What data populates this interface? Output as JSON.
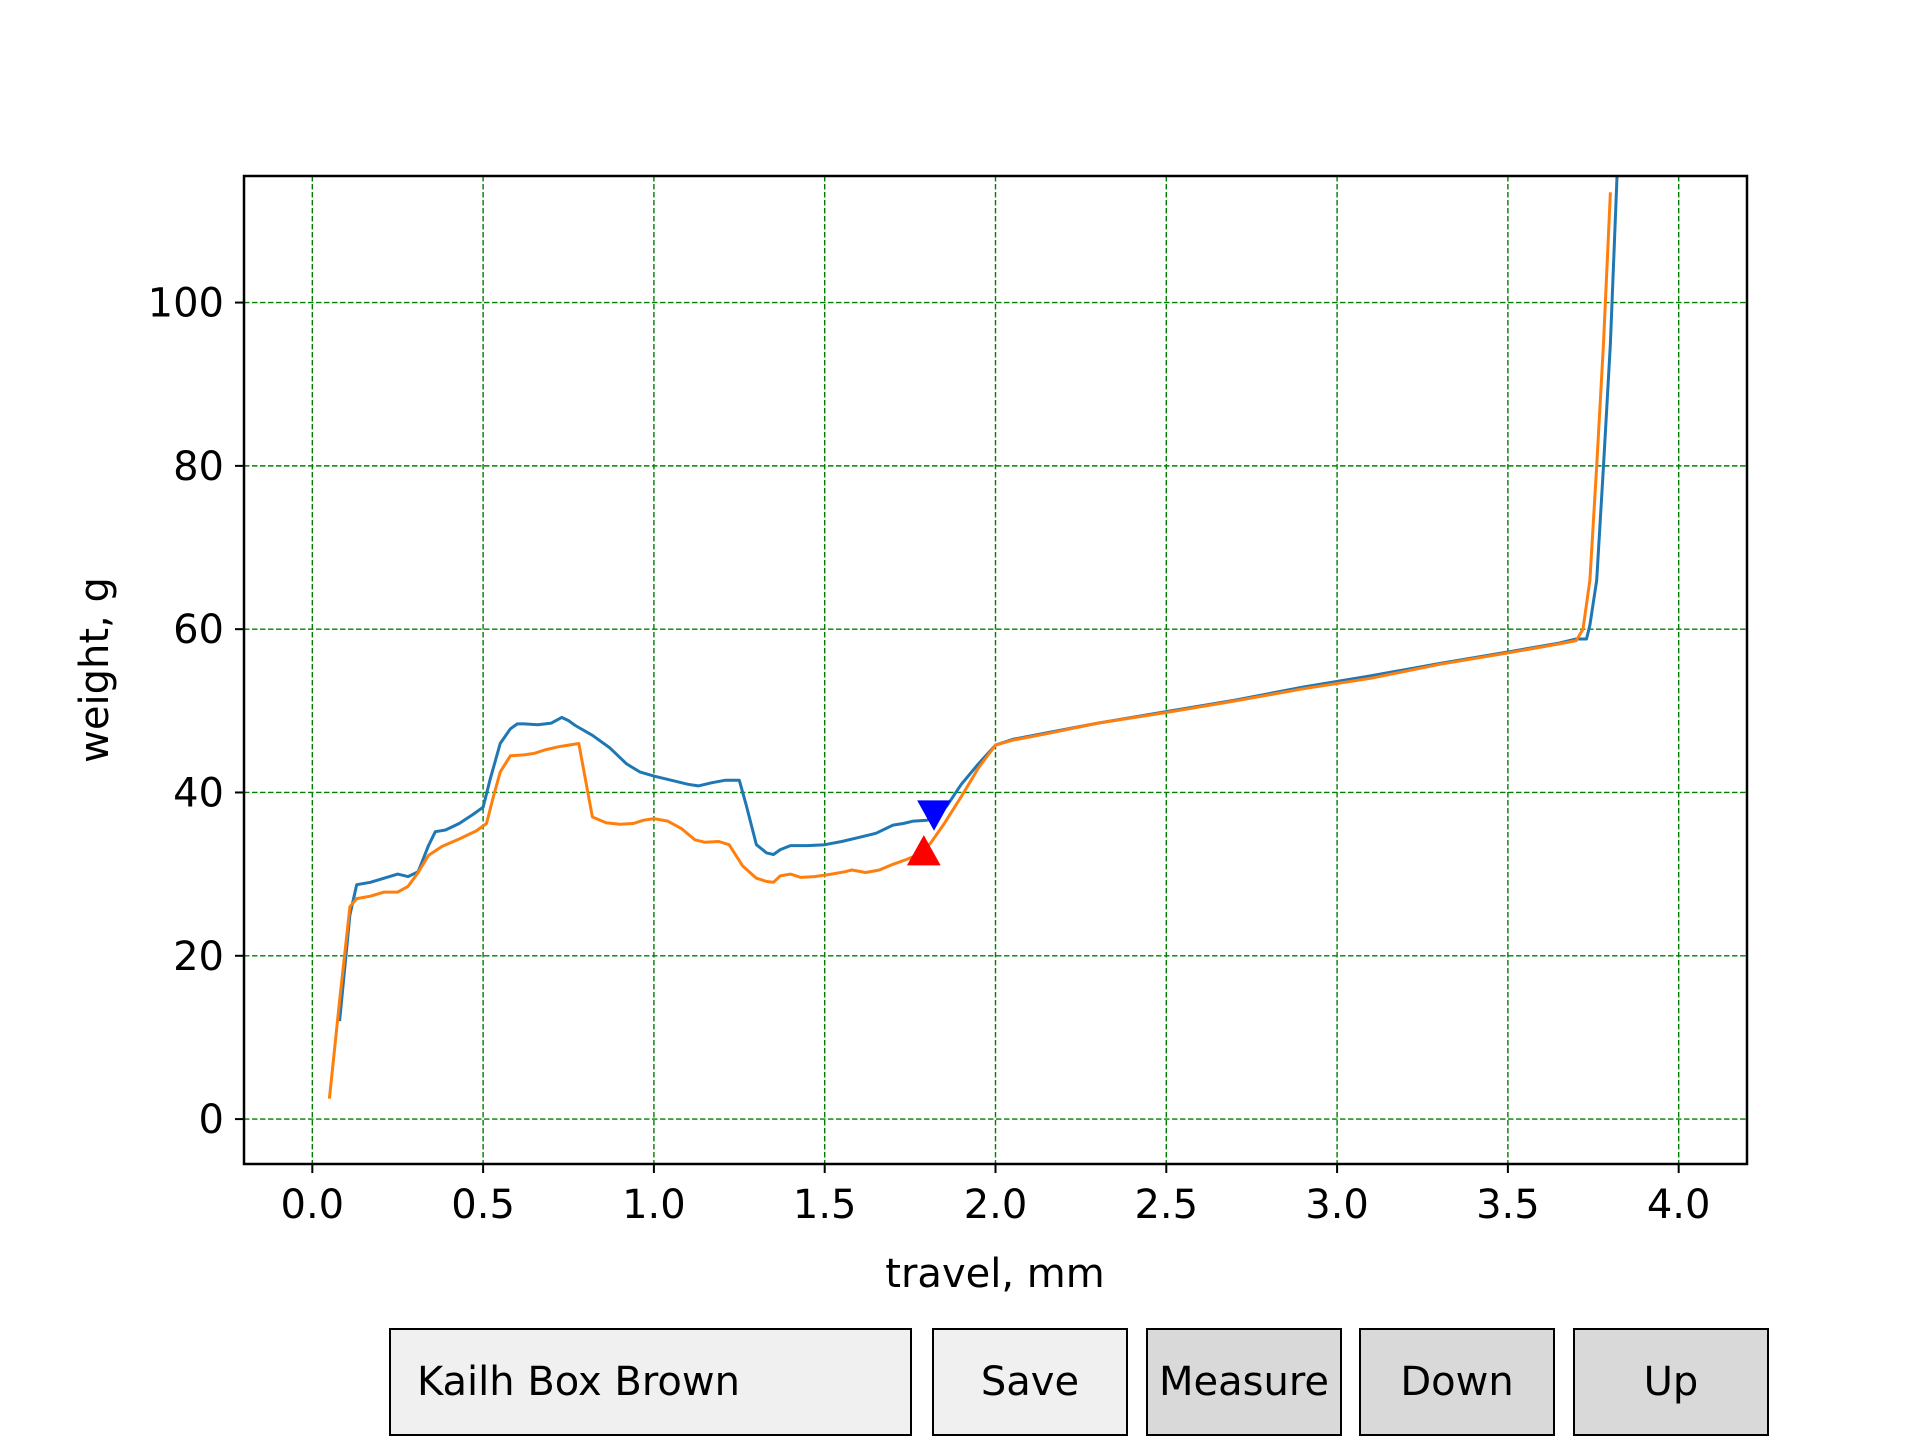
{
  "chart_data": {
    "type": "line",
    "xlabel": "travel, mm",
    "ylabel": "weight, g",
    "xlim": [
      -0.2,
      4.2
    ],
    "ylim": [
      -5.5,
      115.5
    ],
    "xticks": [
      "0.0",
      "0.5",
      "1.0",
      "1.5",
      "2.0",
      "2.5",
      "3.0",
      "3.5",
      "4.0"
    ],
    "yticks": [
      "0",
      "20",
      "40",
      "60",
      "80",
      "100"
    ],
    "grid": true,
    "grid_color": "#008000",
    "series": [
      {
        "color": "#1f77b4",
        "x": [
          0.08,
          0.11,
          0.13,
          0.17,
          0.21,
          0.25,
          0.28,
          0.31,
          0.34,
          0.36,
          0.39,
          0.43,
          0.47,
          0.5,
          0.52,
          0.55,
          0.58,
          0.6,
          0.62,
          0.66,
          0.7,
          0.73,
          0.75,
          0.77,
          0.82,
          0.87,
          0.92,
          0.96,
          1.0,
          1.05,
          1.1,
          1.13,
          1.17,
          1.21,
          1.25,
          1.27,
          1.3,
          1.33,
          1.35,
          1.37,
          1.4,
          1.45,
          1.5,
          1.55,
          1.6,
          1.65,
          1.7,
          1.73,
          1.76,
          1.8,
          1.83,
          1.86,
          1.9,
          1.95,
          2.0,
          2.05,
          2.15,
          2.3,
          2.5,
          2.7,
          2.9,
          3.1,
          3.3,
          3.5,
          3.65,
          3.7,
          3.73,
          3.74,
          3.76,
          3.78,
          3.8,
          3.82
        ],
        "y": [
          12,
          25,
          28.7,
          29,
          29.5,
          30,
          29.7,
          30.3,
          33.5,
          35.2,
          35.4,
          36.2,
          37.3,
          38.2,
          41.5,
          46,
          47.8,
          48.4,
          48.4,
          48.3,
          48.5,
          49.2,
          48.8,
          48.2,
          47,
          45.5,
          43.5,
          42.5,
          42,
          41.5,
          41,
          40.8,
          41.2,
          41.5,
          41.5,
          38.5,
          33.6,
          32.6,
          32.4,
          33,
          33.5,
          33.5,
          33.6,
          34,
          34.5,
          35,
          36,
          36.2,
          36.5,
          36.6,
          37,
          38.5,
          41,
          43.5,
          45.8,
          46.5,
          47.3,
          48.5,
          49.9,
          51.3,
          52.9,
          54.3,
          55.8,
          57.2,
          58.3,
          58.8,
          58.8,
          60.5,
          66,
          80,
          95,
          116
        ]
      },
      {
        "color": "#ff7f0e",
        "x": [
          0.05,
          0.08,
          0.11,
          0.13,
          0.17,
          0.21,
          0.25,
          0.28,
          0.31,
          0.34,
          0.38,
          0.43,
          0.48,
          0.51,
          0.53,
          0.55,
          0.58,
          0.62,
          0.65,
          0.68,
          0.72,
          0.75,
          0.78,
          0.82,
          0.86,
          0.9,
          0.94,
          0.97,
          1.0,
          1.04,
          1.08,
          1.12,
          1.15,
          1.19,
          1.22,
          1.26,
          1.3,
          1.33,
          1.35,
          1.37,
          1.4,
          1.43,
          1.47,
          1.52,
          1.56,
          1.58,
          1.62,
          1.66,
          1.7,
          1.74,
          1.78,
          1.81,
          1.85,
          1.9,
          1.95,
          2.0,
          2.05,
          2.15,
          2.3,
          2.5,
          2.7,
          2.9,
          3.1,
          3.3,
          3.5,
          3.65,
          3.7,
          3.72,
          3.74,
          3.76,
          3.78,
          3.8
        ],
        "y": [
          2.5,
          14.5,
          26,
          27,
          27.3,
          27.8,
          27.8,
          28.5,
          30.2,
          32.3,
          33.4,
          34.3,
          35.3,
          36.2,
          39.5,
          42.5,
          44.5,
          44.6,
          44.8,
          45.2,
          45.6,
          45.8,
          46,
          37,
          36.3,
          36.1,
          36.2,
          36.6,
          36.8,
          36.5,
          35.6,
          34.2,
          33.9,
          34,
          33.6,
          31,
          29.5,
          29.1,
          29,
          29.8,
          30,
          29.6,
          29.7,
          30,
          30.3,
          30.5,
          30.2,
          30.5,
          31.2,
          31.8,
          32.5,
          33.8,
          36.2,
          39.5,
          43,
          45.8,
          46.4,
          47.2,
          48.5,
          49.8,
          51.2,
          52.7,
          54,
          55.7,
          57.1,
          58.2,
          58.6,
          60,
          66,
          80,
          95,
          113.5
        ]
      }
    ],
    "markers": [
      {
        "shape": "triangle-down",
        "color": "#0000ff",
        "x": 1.82,
        "y": 37.3
      },
      {
        "shape": "triangle-up",
        "color": "#ff0000",
        "x": 1.79,
        "y": 32.8
      }
    ]
  },
  "controls": {
    "name_value": "Kailh Box Brown",
    "save_label": "Save",
    "measure_label": "Measure",
    "down_label": "Down",
    "up_label": "Up",
    "textbox_color": "#f0f0f0",
    "save_color": "#f0f0f0",
    "pressed_color": "#d9d9d9"
  }
}
